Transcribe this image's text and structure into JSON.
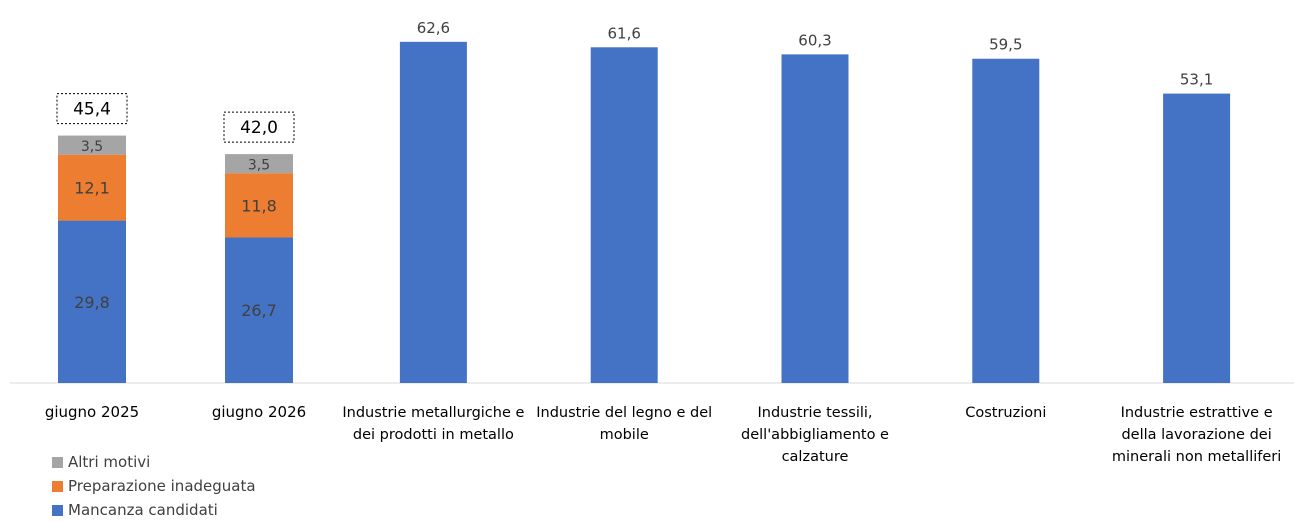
{
  "colors": {
    "mancanza": "#4472C4",
    "preparazione": "#ED7D31",
    "altri": "#A5A5A5",
    "axis": "#D9D9D9",
    "text": "#404040"
  },
  "chart_data": [
    {
      "type": "bar",
      "stacked": true,
      "categories": [
        "giugno  2025",
        "giugno 2026"
      ],
      "series": [
        {
          "name": "Mancanza candidati",
          "values": [
            29.8,
            26.7
          ],
          "labels": [
            "29,8",
            "26,7"
          ],
          "color": "#4472C4"
        },
        {
          "name": "Preparazione inadeguata",
          "values": [
            12.1,
            11.8
          ],
          "labels": [
            "12,1",
            "11,8"
          ],
          "color": "#ED7D31"
        },
        {
          "name": "Altri motivi",
          "values": [
            3.5,
            3.5
          ],
          "labels": [
            "3,5",
            "3,5"
          ],
          "color": "#A5A5A5"
        }
      ],
      "totals": [
        45.4,
        42.0
      ],
      "total_labels": [
        "45,4",
        "42,0"
      ],
      "ylim": [
        0,
        70
      ],
      "grid": false,
      "legend": {
        "position": "bottom-left",
        "order": [
          "Altri motivi",
          "Preparazione inadeguata",
          "Mancanza candidati"
        ]
      },
      "title": "",
      "xlabel": "",
      "ylabel": ""
    },
    {
      "type": "bar",
      "categories": [
        [
          "Industrie metallurgiche e",
          "dei prodotti in metallo"
        ],
        [
          "Industrie del legno e del",
          "mobile"
        ],
        [
          "Industrie tessili,",
          "dell'abbigliamento e",
          "calzature"
        ],
        [
          "Costruzioni"
        ],
        [
          "Industrie estrattive e",
          "della lavorazione dei",
          "minerali non metalliferi"
        ]
      ],
      "values": [
        62.6,
        61.6,
        60.3,
        59.5,
        53.1
      ],
      "value_labels": [
        "62,6",
        "61,6",
        "60,3",
        "59,5",
        "53,1"
      ],
      "color": "#4472C4",
      "ylim": [
        0,
        70
      ],
      "grid": false,
      "title": "",
      "xlabel": "",
      "ylabel": ""
    }
  ]
}
